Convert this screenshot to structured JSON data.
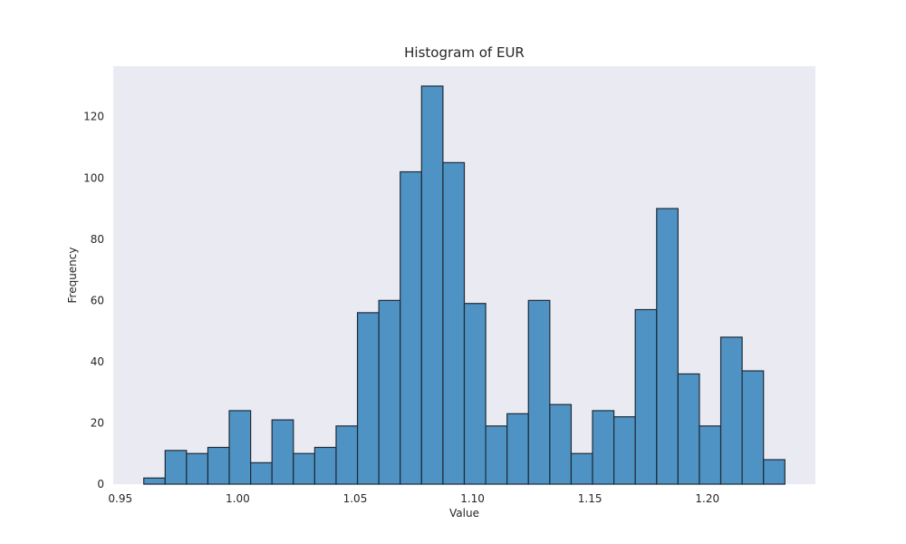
{
  "chart_data": {
    "type": "bar",
    "title": "Histogram of EUR",
    "xlabel": "Value",
    "ylabel": "Frequency",
    "xlim": [
      0.947,
      1.246
    ],
    "ylim": [
      0,
      136.5
    ],
    "grid": false,
    "x_ticks": [
      0.95,
      1.0,
      1.05,
      1.1,
      1.15,
      1.2
    ],
    "x_tick_labels": [
      "0.95",
      "1.00",
      "1.05",
      "1.10",
      "1.15",
      "1.20"
    ],
    "y_ticks": [
      0,
      20,
      40,
      60,
      80,
      100,
      120
    ],
    "y_tick_labels": [
      "0",
      "20",
      "40",
      "60",
      "80",
      "100",
      "120"
    ],
    "bin_edges": [
      0.96,
      0.9691,
      0.9782,
      0.9873,
      0.9964,
      1.0055,
      1.0146,
      1.0237,
      1.0328,
      1.0419,
      1.051,
      1.0601,
      1.0692,
      1.0783,
      1.0874,
      1.0965,
      1.1056,
      1.1147,
      1.1238,
      1.1329,
      1.142,
      1.1511,
      1.1602,
      1.1693,
      1.1784,
      1.1875,
      1.1966,
      1.2057,
      1.2148,
      1.2239,
      1.233
    ],
    "values": [
      2,
      11,
      10,
      12,
      24,
      7,
      21,
      10,
      12,
      19,
      56,
      60,
      102,
      130,
      105,
      59,
      19,
      23,
      60,
      26,
      10,
      24,
      22,
      57,
      90,
      36,
      19,
      48,
      37,
      8
    ],
    "colors": {
      "bar_fill": "#4f93c4",
      "bar_edge": "#1f2a36",
      "plot_bg": "#eaeaf2",
      "text": "#262626"
    }
  }
}
